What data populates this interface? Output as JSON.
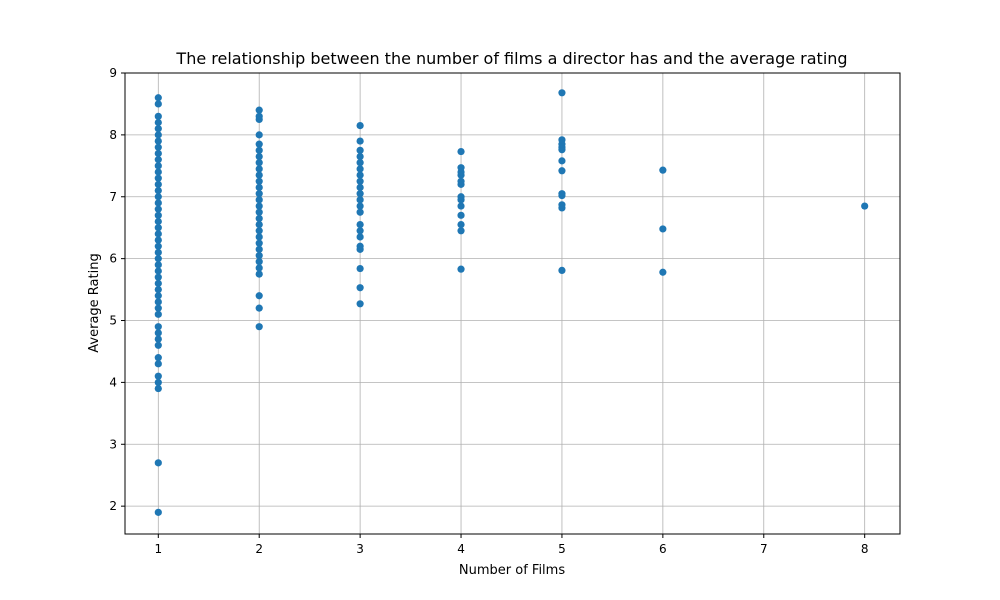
{
  "chart_data": {
    "type": "scatter",
    "title": "The relationship between the number of films a director has and the average rating",
    "xlabel": "Number of Films",
    "ylabel": "Average Rating",
    "xlim": [
      0.67,
      8.35
    ],
    "ylim": [
      1.55,
      9.0
    ],
    "xticks": [
      1,
      2,
      3,
      4,
      5,
      6,
      7,
      8
    ],
    "yticks": [
      2,
      3,
      4,
      5,
      6,
      7,
      8,
      9
    ],
    "grid": true,
    "marker_color": "#1f77b4",
    "points": [
      [
        1,
        1.9
      ],
      [
        1,
        2.7
      ],
      [
        1,
        3.9
      ],
      [
        1,
        4.0
      ],
      [
        1,
        4.1
      ],
      [
        1,
        4.3
      ],
      [
        1,
        4.4
      ],
      [
        1,
        4.6
      ],
      [
        1,
        4.7
      ],
      [
        1,
        4.8
      ],
      [
        1,
        4.9
      ],
      [
        1,
        5.1
      ],
      [
        1,
        5.2
      ],
      [
        1,
        5.3
      ],
      [
        1,
        5.4
      ],
      [
        1,
        5.5
      ],
      [
        1,
        5.6
      ],
      [
        1,
        5.7
      ],
      [
        1,
        5.8
      ],
      [
        1,
        5.9
      ],
      [
        1,
        6.0
      ],
      [
        1,
        6.1
      ],
      [
        1,
        6.2
      ],
      [
        1,
        6.3
      ],
      [
        1,
        6.4
      ],
      [
        1,
        6.5
      ],
      [
        1,
        6.6
      ],
      [
        1,
        6.7
      ],
      [
        1,
        6.8
      ],
      [
        1,
        6.9
      ],
      [
        1,
        7.0
      ],
      [
        1,
        7.1
      ],
      [
        1,
        7.2
      ],
      [
        1,
        7.3
      ],
      [
        1,
        7.4
      ],
      [
        1,
        7.5
      ],
      [
        1,
        7.6
      ],
      [
        1,
        7.7
      ],
      [
        1,
        7.8
      ],
      [
        1,
        7.9
      ],
      [
        1,
        8.0
      ],
      [
        1,
        8.1
      ],
      [
        1,
        8.2
      ],
      [
        1,
        8.3
      ],
      [
        1,
        8.5
      ],
      [
        1,
        8.6
      ],
      [
        2,
        4.9
      ],
      [
        2,
        5.2
      ],
      [
        2,
        5.4
      ],
      [
        2,
        5.75
      ],
      [
        2,
        5.85
      ],
      [
        2,
        5.95
      ],
      [
        2,
        6.05
      ],
      [
        2,
        6.15
      ],
      [
        2,
        6.25
      ],
      [
        2,
        6.35
      ],
      [
        2,
        6.45
      ],
      [
        2,
        6.55
      ],
      [
        2,
        6.65
      ],
      [
        2,
        6.75
      ],
      [
        2,
        6.85
      ],
      [
        2,
        6.95
      ],
      [
        2,
        7.05
      ],
      [
        2,
        7.15
      ],
      [
        2,
        7.25
      ],
      [
        2,
        7.35
      ],
      [
        2,
        7.45
      ],
      [
        2,
        7.55
      ],
      [
        2,
        7.65
      ],
      [
        2,
        7.75
      ],
      [
        2,
        7.85
      ],
      [
        2,
        8.0
      ],
      [
        2,
        8.25
      ],
      [
        2,
        8.3
      ],
      [
        2,
        8.4
      ],
      [
        3,
        5.27
      ],
      [
        3,
        5.53
      ],
      [
        3,
        5.84
      ],
      [
        3,
        6.15
      ],
      [
        3,
        6.2
      ],
      [
        3,
        6.35
      ],
      [
        3,
        6.45
      ],
      [
        3,
        6.55
      ],
      [
        3,
        6.75
      ],
      [
        3,
        6.85
      ],
      [
        3,
        6.95
      ],
      [
        3,
        7.05
      ],
      [
        3,
        7.15
      ],
      [
        3,
        7.25
      ],
      [
        3,
        7.35
      ],
      [
        3,
        7.45
      ],
      [
        3,
        7.55
      ],
      [
        3,
        7.65
      ],
      [
        3,
        7.75
      ],
      [
        3,
        7.9
      ],
      [
        3,
        8.15
      ],
      [
        4,
        5.83
      ],
      [
        4,
        6.45
      ],
      [
        4,
        6.55
      ],
      [
        4,
        6.7
      ],
      [
        4,
        6.85
      ],
      [
        4,
        6.95
      ],
      [
        4,
        7.0
      ],
      [
        4,
        7.2
      ],
      [
        4,
        7.25
      ],
      [
        4,
        7.35
      ],
      [
        4,
        7.4
      ],
      [
        4,
        7.47
      ],
      [
        4,
        7.73
      ],
      [
        5,
        5.81
      ],
      [
        5,
        6.82
      ],
      [
        5,
        6.87
      ],
      [
        5,
        7.02
      ],
      [
        5,
        7.05
      ],
      [
        5,
        7.42
      ],
      [
        5,
        7.58
      ],
      [
        5,
        7.76
      ],
      [
        5,
        7.8
      ],
      [
        5,
        7.85
      ],
      [
        5,
        7.92
      ],
      [
        5,
        8.68
      ],
      [
        6,
        5.78
      ],
      [
        6,
        6.48
      ],
      [
        6,
        7.43
      ],
      [
        8,
        6.85
      ]
    ]
  }
}
